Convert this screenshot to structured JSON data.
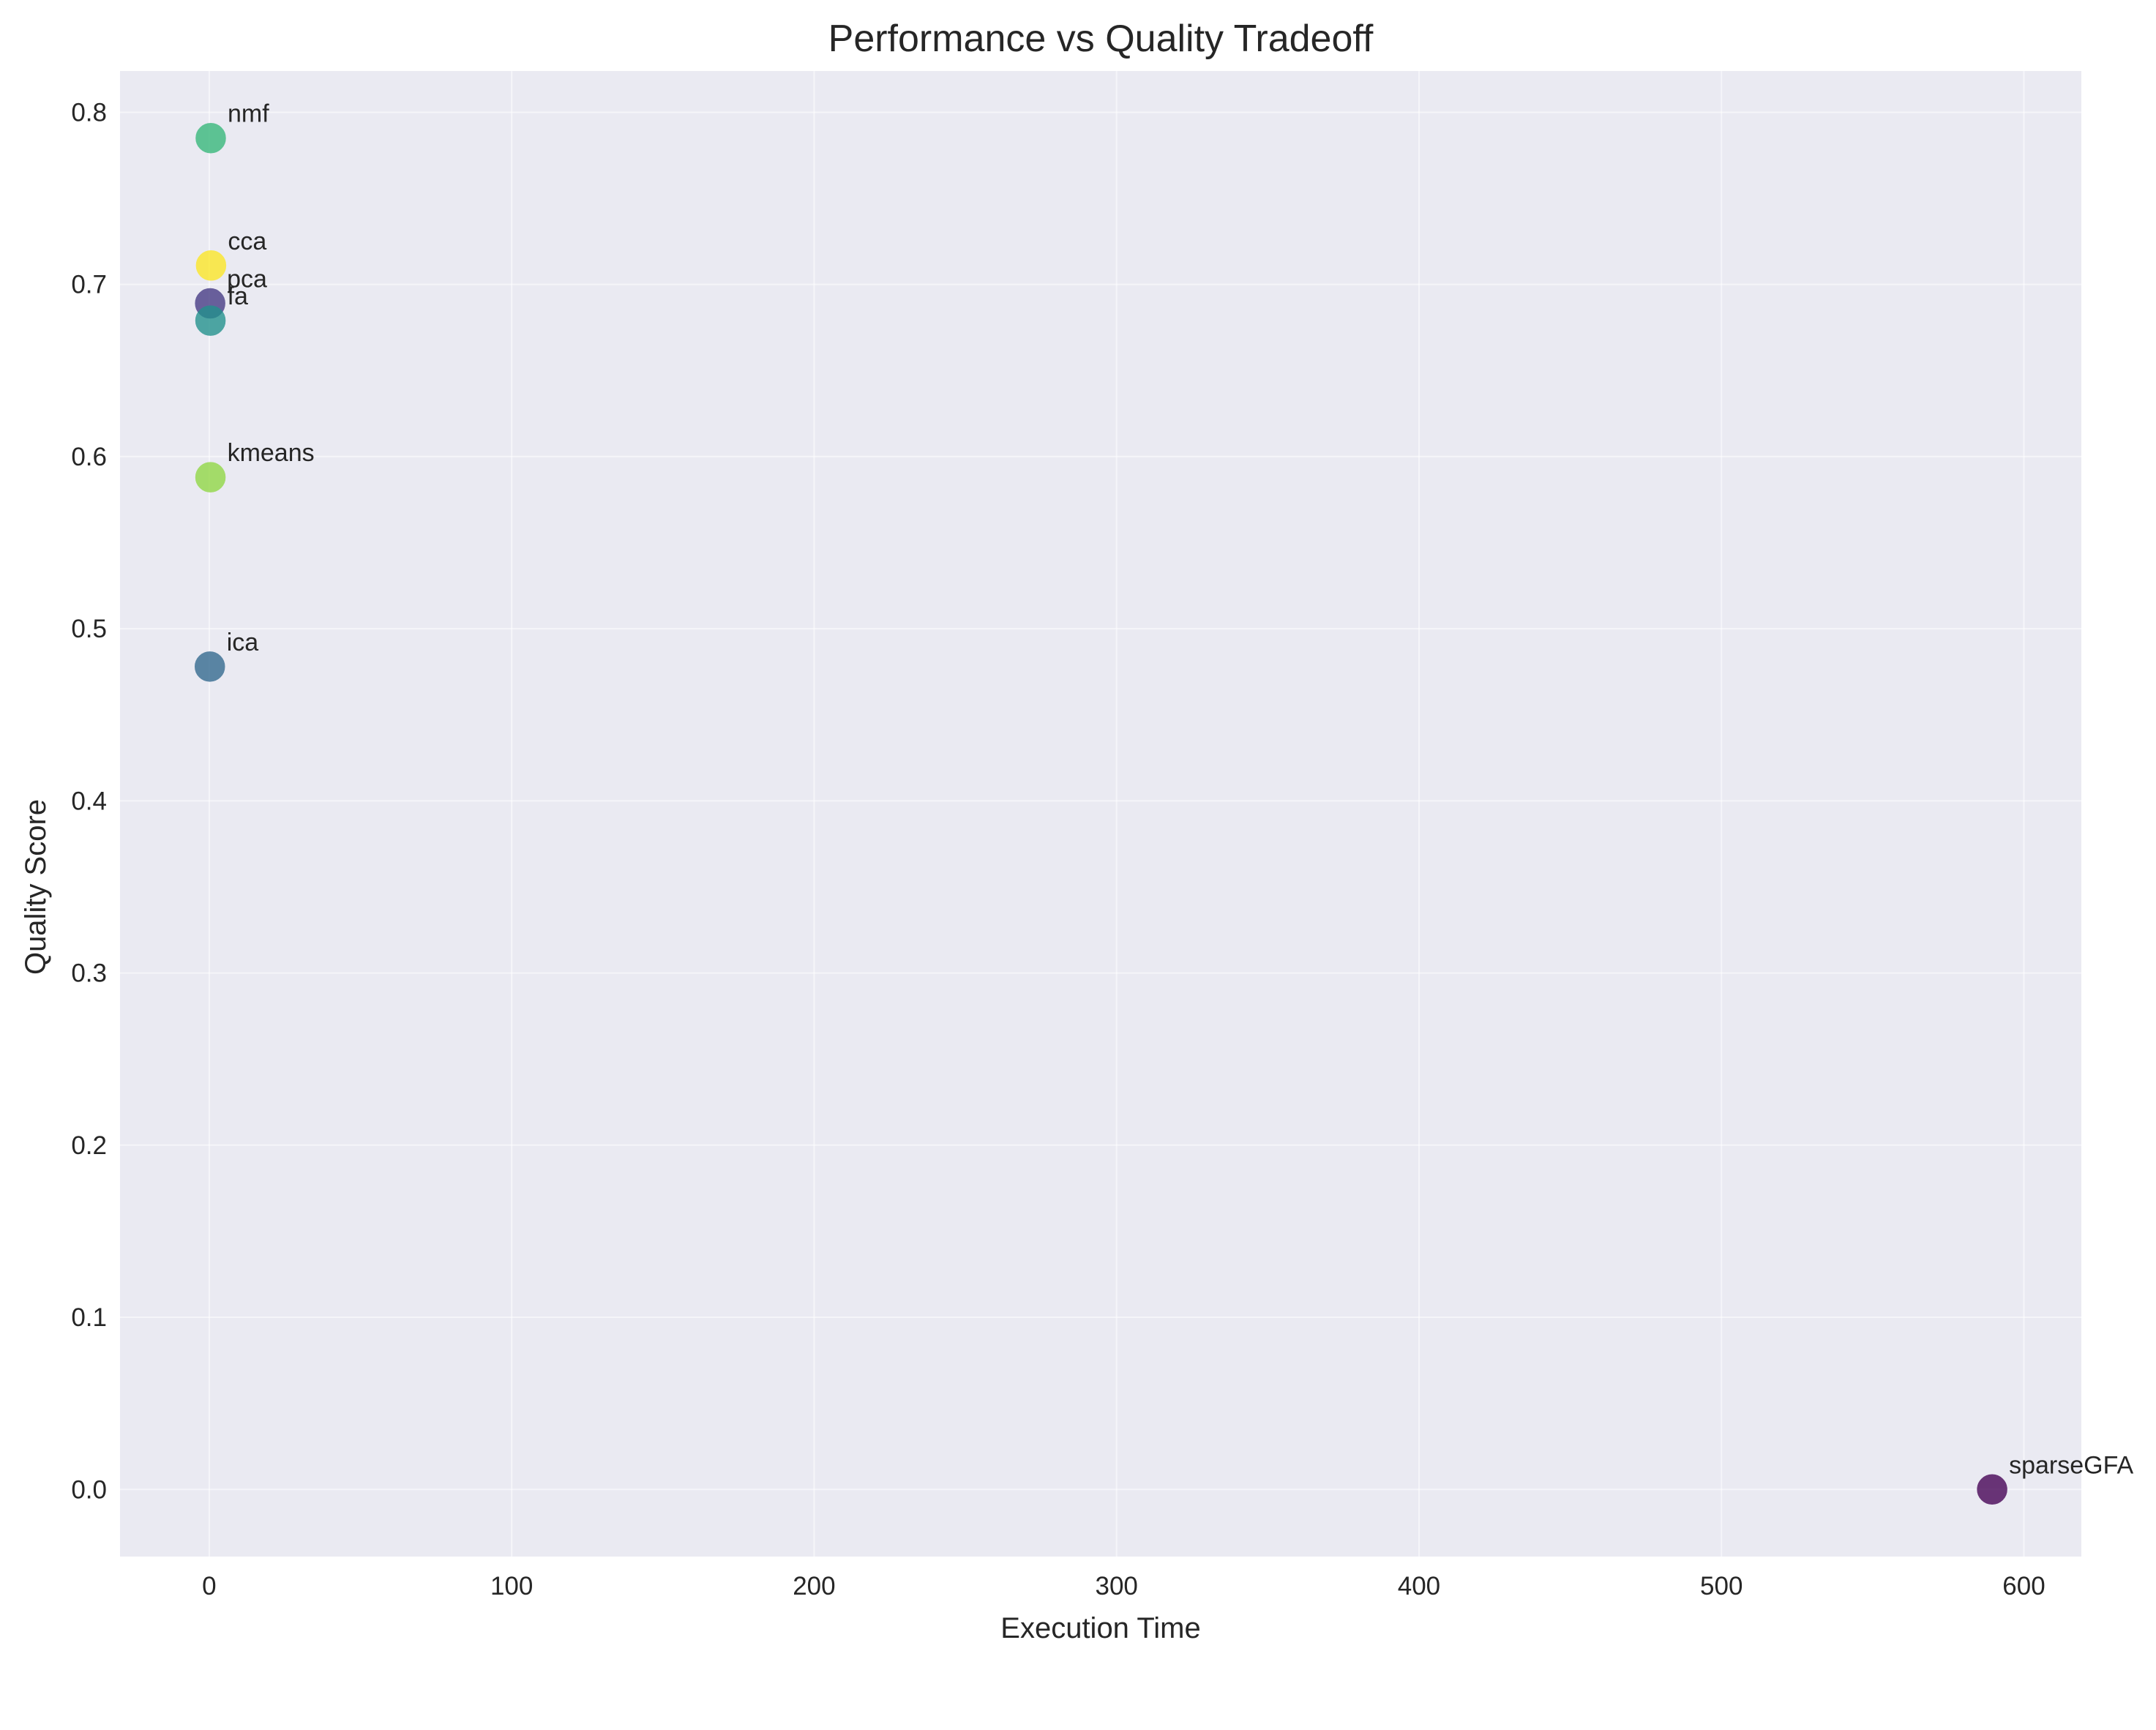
{
  "chart_data": {
    "type": "scatter",
    "title": "Performance vs Quality Tradeoff",
    "xlabel": "Execution Time",
    "ylabel": "Quality Score",
    "xlim": [
      -29.5,
      619
    ],
    "ylim": [
      -0.039,
      0.824
    ],
    "xticks": [
      0,
      100,
      200,
      300,
      400,
      500,
      600
    ],
    "yticks": [
      0.0,
      0.1,
      0.2,
      0.3,
      0.4,
      0.5,
      0.6,
      0.7,
      0.8
    ],
    "grid": true,
    "legend": "none",
    "colors": {
      "plot_background": "#eaeaf2",
      "grid": "#ffffff"
    },
    "points": [
      {
        "label": "sparseGFA",
        "x": 589.5,
        "y": 0.0,
        "color": "#440154"
      },
      {
        "label": "pca",
        "x": 0.3,
        "y": 0.689,
        "color": "#443983"
      },
      {
        "label": "ica",
        "x": 0.2,
        "y": 0.478,
        "color": "#31688e"
      },
      {
        "label": "fa",
        "x": 0.4,
        "y": 0.679,
        "color": "#21918c"
      },
      {
        "label": "nmf",
        "x": 0.5,
        "y": 0.785,
        "color": "#35b779"
      },
      {
        "label": "kmeans",
        "x": 0.4,
        "y": 0.588,
        "color": "#90d743"
      },
      {
        "label": "cca",
        "x": 0.6,
        "y": 0.711,
        "color": "#fde725"
      }
    ]
  }
}
